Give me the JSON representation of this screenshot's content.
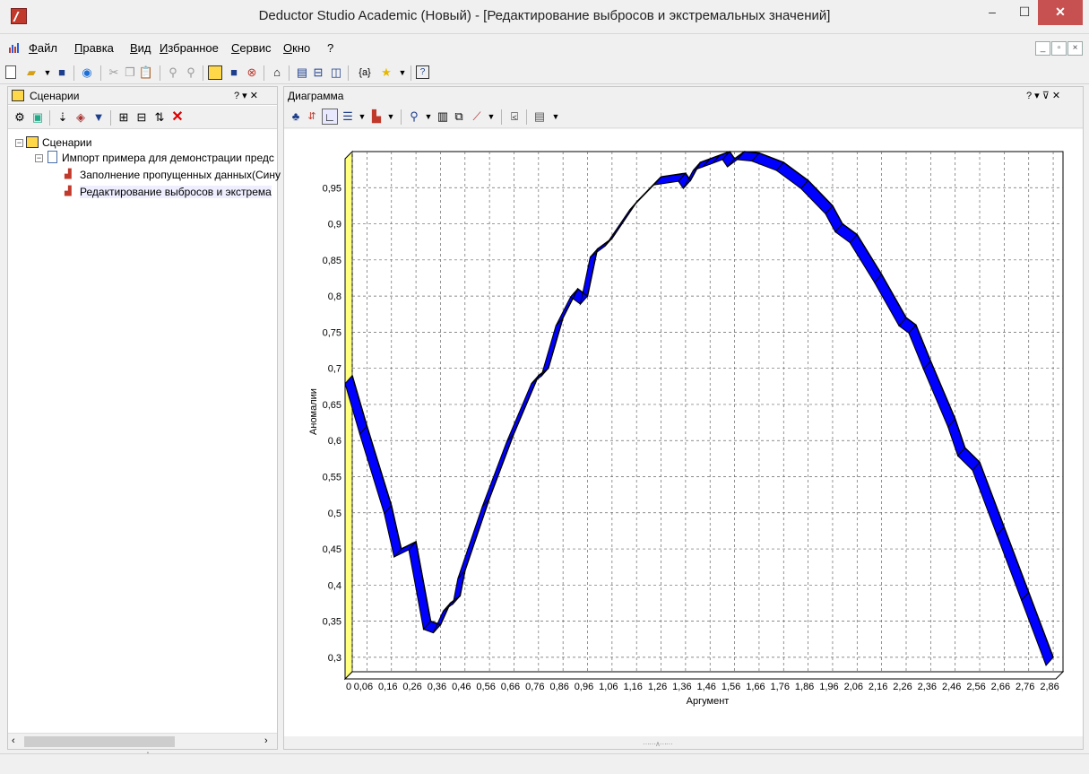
{
  "window": {
    "title": "Deductor Studio Academic (Новый) - [Редактирование выбросов и экстремальных значений]",
    "controls": {
      "minimize": "‒",
      "maximize": "☐",
      "close": "✕"
    }
  },
  "menu": {
    "items": [
      "Файл",
      "Правка",
      "Вид",
      "Избранное",
      "Сервис",
      "Окно",
      "?"
    ]
  },
  "scenarios_panel": {
    "title": "Сценарии",
    "pane_controls": "? ▾ ✕",
    "tree": {
      "root": "Сценарии",
      "import_node": "Импорт примера для демонстрации предс",
      "children": [
        "Заполнение пропущенных данных(Сину",
        "Редактирование выбросов и экстрема"
      ]
    }
  },
  "chart_panel": {
    "title": "Диаграмма",
    "pane_controls": "? ▾ ⊽ ✕"
  },
  "chart_data": {
    "type": "line",
    "xlabel": "Аргумент",
    "ylabel": "Аномалии",
    "x_tick_labels": [
      "0",
      "0,06",
      "0,16",
      "0,26",
      "0,36",
      "0,46",
      "0,56",
      "0,66",
      "0,76",
      "0,86",
      "0,96",
      "1,06",
      "1,16",
      "1,26",
      "1,36",
      "1,46",
      "1,56",
      "1,66",
      "1,76",
      "1,86",
      "1,96",
      "2,06",
      "2,16",
      "2,26",
      "2,36",
      "2,46",
      "2,56",
      "2,66",
      "2,76",
      "2,86"
    ],
    "y_tick_labels": [
      "0,3",
      "0,35",
      "0,4",
      "0,45",
      "0,5",
      "0,55",
      "0,6",
      "0,65",
      "0,7",
      "0,75",
      "0,8",
      "0,85",
      "0,9",
      "0,95"
    ],
    "xlim": [
      0,
      2.9
    ],
    "ylim": [
      0.28,
      1.0
    ],
    "grid": true,
    "style": "3d-ribbon",
    "series_color": "#0000ff",
    "series": [
      {
        "x": [
          0,
          0.06,
          0.16,
          0.2,
          0.26,
          0.32,
          0.36,
          0.4,
          0.44,
          0.46,
          0.56,
          0.66,
          0.76,
          0.8,
          0.86,
          0.92,
          0.96,
          1.0,
          1.06,
          1.16,
          1.26,
          1.36,
          1.38,
          1.42,
          1.46,
          1.5,
          1.54,
          1.56,
          1.6,
          1.66,
          1.76,
          1.86,
          1.96,
          2.0,
          2.06,
          2.16,
          2.26,
          2.3,
          2.36,
          2.46,
          2.5,
          2.56,
          2.66,
          2.76,
          2.86
        ],
        "y": [
          0.69,
          0.62,
          0.51,
          0.45,
          0.46,
          0.35,
          0.345,
          0.375,
          0.385,
          0.42,
          0.52,
          0.61,
          0.69,
          0.7,
          0.77,
          0.81,
          0.8,
          0.865,
          0.88,
          0.93,
          0.965,
          0.97,
          0.96,
          0.985,
          0.99,
          0.995,
          1.0,
          0.99,
          1.0,
          0.998,
          0.985,
          0.96,
          0.925,
          0.9,
          0.885,
          0.83,
          0.77,
          0.76,
          0.71,
          0.63,
          0.59,
          0.57,
          0.48,
          0.39,
          0.3
        ]
      }
    ]
  }
}
